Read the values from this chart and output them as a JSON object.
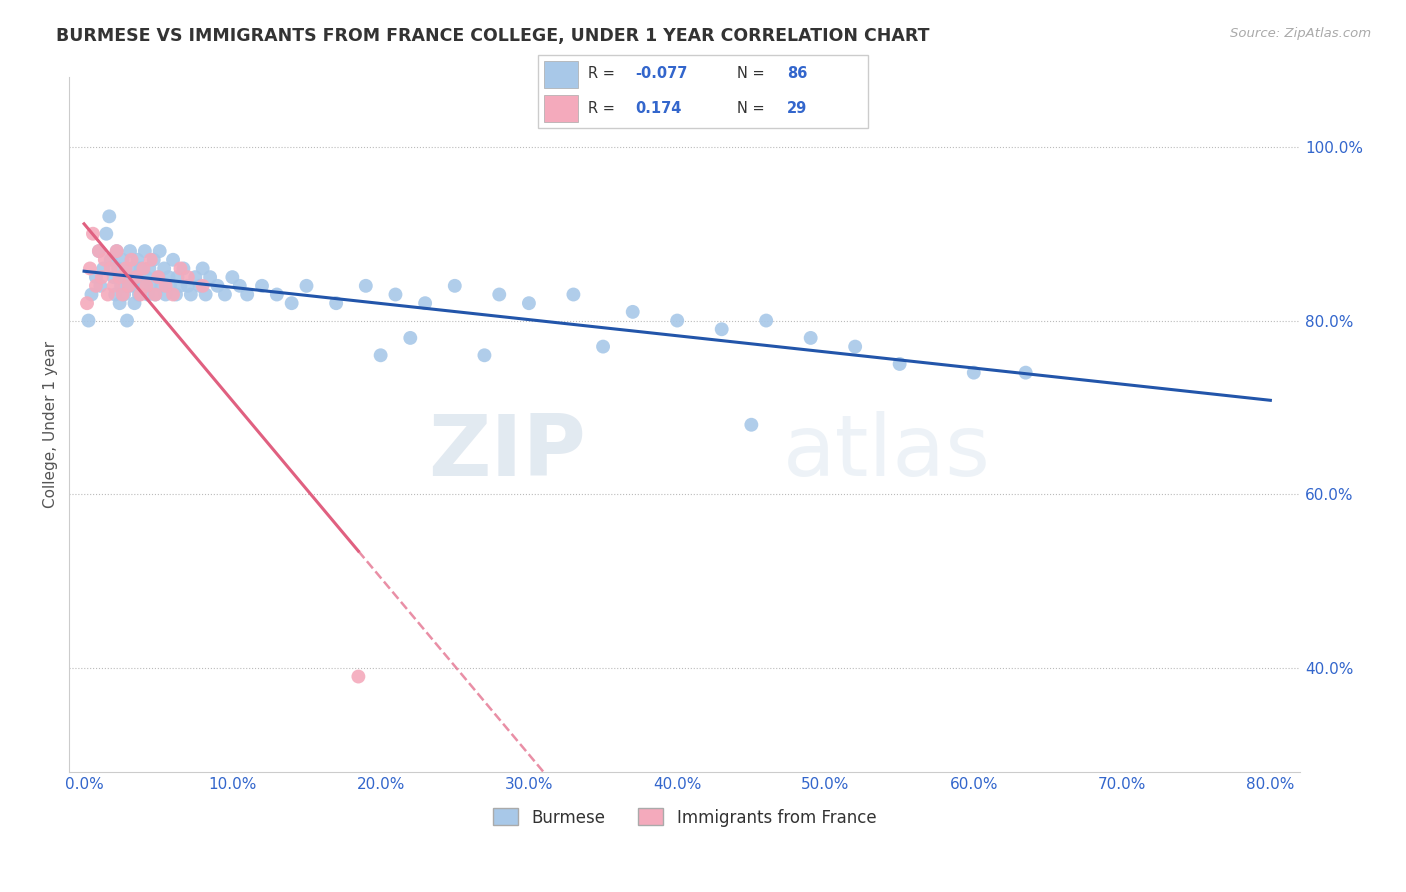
{
  "title": "BURMESE VS IMMIGRANTS FROM FRANCE COLLEGE, UNDER 1 YEAR CORRELATION CHART",
  "source": "Source: ZipAtlas.com",
  "ylabel": "College, Under 1 year",
  "x_tick_labels": [
    "0.0%",
    "10.0%",
    "20.0%",
    "30.0%",
    "40.0%",
    "50.0%",
    "60.0%",
    "70.0%",
    "80.0%"
  ],
  "x_tick_values": [
    0,
    10,
    20,
    30,
    40,
    50,
    60,
    70,
    80
  ],
  "y_tick_labels": [
    "40.0%",
    "60.0%",
    "80.0%",
    "100.0%"
  ],
  "y_tick_values": [
    40,
    60,
    80,
    100
  ],
  "xlim": [
    -1,
    82
  ],
  "ylim": [
    28,
    108
  ],
  "blue_color": "#A8C8E8",
  "pink_color": "#F4AABC",
  "blue_line_color": "#2255AA",
  "pink_line_color": "#E06080",
  "watermark_zip": "ZIP",
  "watermark_atlas": "atlas",
  "legend_blue_label": "Burmese",
  "legend_pink_label": "Immigrants from France",
  "blue_R_str": "-0.077",
  "blue_N": "86",
  "pink_R_str": "0.174",
  "pink_N": "29",
  "blue_scatter_x": [
    0.3,
    0.5,
    0.8,
    1.0,
    1.1,
    1.3,
    1.5,
    1.7,
    1.8,
    2.0,
    2.1,
    2.2,
    2.3,
    2.4,
    2.5,
    2.6,
    2.7,
    2.8,
    2.9,
    3.0,
    3.1,
    3.2,
    3.3,
    3.4,
    3.5,
    3.6,
    3.7,
    3.8,
    4.0,
    4.1,
    4.2,
    4.3,
    4.4,
    4.5,
    4.7,
    4.8,
    5.0,
    5.1,
    5.2,
    5.4,
    5.5,
    5.7,
    5.8,
    6.0,
    6.2,
    6.3,
    6.5,
    6.7,
    7.0,
    7.2,
    7.5,
    7.8,
    8.0,
    8.2,
    8.5,
    9.0,
    9.5,
    10.0,
    10.5,
    11.0,
    12.0,
    13.0,
    14.0,
    15.0,
    17.0,
    19.0,
    21.0,
    23.0,
    25.0,
    28.0,
    30.0,
    33.0,
    37.0,
    40.0,
    43.0,
    46.0,
    49.0,
    52.0,
    55.0,
    60.0,
    63.5,
    20.0,
    22.0,
    27.0,
    35.0,
    45.0
  ],
  "blue_scatter_y": [
    80,
    83,
    85,
    88,
    84,
    86,
    90,
    92,
    87,
    85,
    83,
    88,
    86,
    82,
    84,
    87,
    83,
    85,
    80,
    84,
    88,
    86,
    84,
    82,
    85,
    87,
    83,
    86,
    84,
    88,
    85,
    83,
    86,
    84,
    87,
    83,
    85,
    88,
    84,
    86,
    83,
    85,
    84,
    87,
    83,
    85,
    84,
    86,
    84,
    83,
    85,
    84,
    86,
    83,
    85,
    84,
    83,
    85,
    84,
    83,
    84,
    83,
    82,
    84,
    82,
    84,
    83,
    82,
    84,
    83,
    82,
    83,
    81,
    80,
    79,
    80,
    78,
    77,
    75,
    74,
    74,
    76,
    78,
    76,
    77,
    68
  ],
  "pink_scatter_x": [
    0.2,
    0.4,
    0.6,
    0.8,
    1.0,
    1.2,
    1.4,
    1.6,
    1.8,
    2.0,
    2.2,
    2.4,
    2.6,
    2.8,
    3.0,
    3.2,
    3.5,
    3.8,
    4.0,
    4.2,
    4.5,
    4.8,
    5.0,
    5.5,
    6.0,
    6.5,
    7.0,
    8.0,
    18.5
  ],
  "pink_scatter_y": [
    82,
    86,
    90,
    84,
    88,
    85,
    87,
    83,
    86,
    84,
    88,
    85,
    83,
    86,
    84,
    87,
    85,
    83,
    86,
    84,
    87,
    83,
    85,
    84,
    83,
    86,
    85,
    84,
    39
  ]
}
